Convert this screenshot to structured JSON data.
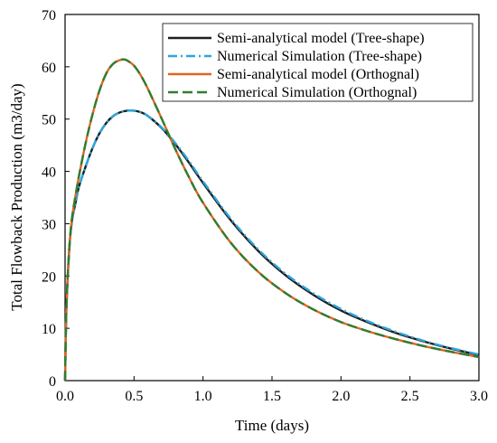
{
  "chart_data": {
    "type": "line",
    "title": "",
    "xlabel": "Time (days)",
    "ylabel": "Total Flowback Production (m3/day)",
    "xlim": [
      0,
      3
    ],
    "ylim": [
      0,
      70
    ],
    "x_ticks": [
      "0.0",
      "0.5",
      "1.0",
      "1.5",
      "2.0",
      "2.5",
      "3.0"
    ],
    "y_ticks": [
      "0",
      "10",
      "20",
      "30",
      "40",
      "50",
      "60",
      "70"
    ],
    "grid": false,
    "legend_position": "top-right",
    "series": [
      {
        "name": "Semi-analytical model (Tree-shape)",
        "color": "#1f1f1f",
        "dash": "solid",
        "x": [
          0,
          0.01,
          0.03,
          0.05,
          0.08,
          0.1,
          0.15,
          0.2,
          0.25,
          0.3,
          0.35,
          0.4,
          0.45,
          0.5,
          0.55,
          0.6,
          0.7,
          0.8,
          0.9,
          1.0,
          1.2,
          1.4,
          1.6,
          1.8,
          2.0,
          2.2,
          2.4,
          2.6,
          2.8,
          3.0
        ],
        "y": [
          0,
          14,
          25,
          30.5,
          34.5,
          37,
          41,
          44.5,
          47.3,
          49.3,
          50.6,
          51.3,
          51.6,
          51.6,
          51.3,
          50.6,
          48.3,
          45.2,
          41.6,
          37.8,
          30.7,
          24.8,
          20.1,
          16.4,
          13.4,
          11.1,
          9.1,
          7.5,
          6.1,
          4.9
        ]
      },
      {
        "name": "Numerical Simulation (Tree-shape)",
        "color": "#2ba6dd",
        "dash": "dashdot",
        "x": [
          0,
          0.01,
          0.03,
          0.05,
          0.08,
          0.1,
          0.15,
          0.2,
          0.25,
          0.3,
          0.35,
          0.4,
          0.45,
          0.5,
          0.55,
          0.6,
          0.7,
          0.8,
          0.9,
          1.0,
          1.2,
          1.4,
          1.6,
          1.8,
          2.0,
          2.2,
          2.4,
          2.6,
          2.8,
          3.0
        ],
        "y": [
          0,
          14,
          25,
          30.5,
          34.5,
          37,
          41,
          44.5,
          47.3,
          49.3,
          50.6,
          51.3,
          51.6,
          51.6,
          51.3,
          50.6,
          48.4,
          45.4,
          41.9,
          38.1,
          31.0,
          25.1,
          20.4,
          16.7,
          13.7,
          11.3,
          9.3,
          7.6,
          6.2,
          5.0
        ]
      },
      {
        "name": "Semi-analytical model (Orthognal)",
        "color": "#e5641f",
        "dash": "solid",
        "x": [
          0,
          0.01,
          0.03,
          0.05,
          0.08,
          0.1,
          0.15,
          0.2,
          0.25,
          0.3,
          0.35,
          0.4,
          0.43,
          0.45,
          0.5,
          0.55,
          0.6,
          0.7,
          0.8,
          0.9,
          1.0,
          1.2,
          1.4,
          1.6,
          1.8,
          2.0,
          2.2,
          2.4,
          2.6,
          2.8,
          3.0
        ],
        "y": [
          0,
          14,
          25,
          31,
          36,
          39,
          45.5,
          51,
          55.5,
          58.8,
          60.6,
          61.3,
          61.4,
          61.2,
          60.2,
          58.3,
          55.8,
          50.1,
          44.2,
          38.8,
          34.0,
          26.4,
          20.8,
          16.7,
          13.6,
          11.2,
          9.4,
          7.9,
          6.6,
          5.5,
          4.5
        ]
      },
      {
        "name": "Numerical Simulation (Orthognal)",
        "color": "#2e7d32",
        "dash": "dashed",
        "x": [
          0,
          0.01,
          0.03,
          0.05,
          0.08,
          0.1,
          0.15,
          0.2,
          0.25,
          0.3,
          0.35,
          0.4,
          0.43,
          0.45,
          0.5,
          0.55,
          0.6,
          0.7,
          0.8,
          0.9,
          1.0,
          1.2,
          1.4,
          1.6,
          1.8,
          2.0,
          2.2,
          2.4,
          2.6,
          2.8,
          3.0
        ],
        "y": [
          0,
          14,
          25,
          31,
          36,
          39,
          45.5,
          51,
          55.5,
          58.8,
          60.6,
          61.3,
          61.4,
          61.2,
          60.2,
          58.3,
          55.8,
          50.1,
          44.2,
          38.8,
          34.0,
          26.4,
          20.8,
          16.7,
          13.6,
          11.2,
          9.4,
          7.9,
          6.6,
          5.5,
          4.5
        ]
      }
    ]
  }
}
